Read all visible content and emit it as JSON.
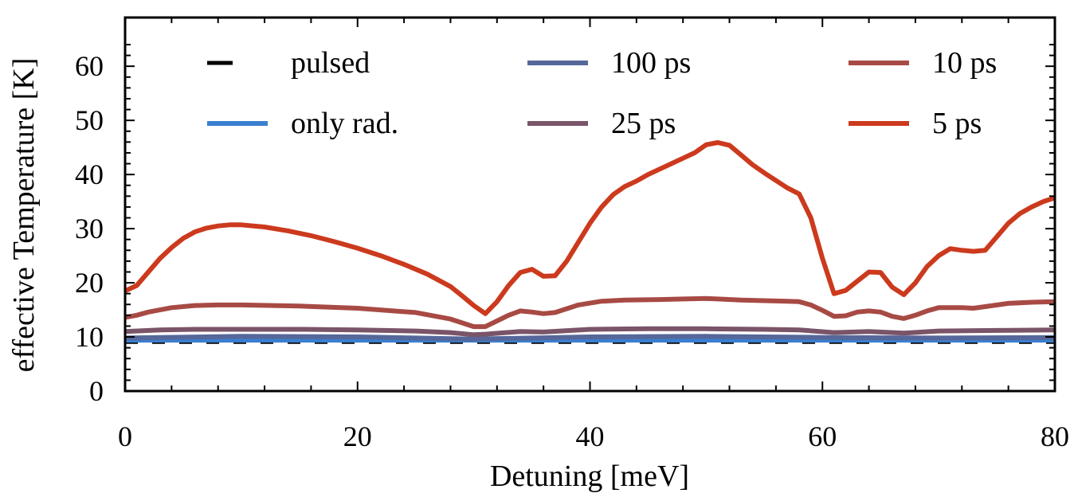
{
  "chart_data": {
    "type": "line",
    "title": "",
    "xlabel": "Detuning [meV]",
    "ylabel": "effective Temperature [K]",
    "xlim": [
      0,
      80
    ],
    "ylim": [
      0,
      69
    ],
    "xticks": [
      0,
      20,
      40,
      60,
      80
    ],
    "xtick_labels": [
      "0",
      "20",
      "40",
      "60",
      "80"
    ],
    "yticks": [
      0,
      10,
      20,
      30,
      40,
      50,
      60
    ],
    "ytick_labels": [
      "0",
      "10",
      "20",
      "30",
      "40",
      "50",
      "60"
    ],
    "grid": false,
    "legend_position": "top, three columns",
    "series": [
      {
        "name": "pulsed",
        "color": "#000000",
        "style": "dashed",
        "x": [
          0,
          80
        ],
        "y": [
          9.0,
          9.0
        ]
      },
      {
        "name": "only rad.",
        "color": "#3a7fcf",
        "style": "solid",
        "x": [
          0,
          80
        ],
        "y": [
          9.4,
          9.4
        ]
      },
      {
        "name": "100 ps",
        "color": "#56679a",
        "style": "solid",
        "x": [
          0,
          10,
          20,
          30,
          40,
          50,
          60,
          70,
          80
        ],
        "y": [
          9.8,
          10.1,
          10.0,
          9.6,
          10.0,
          10.1,
          9.9,
          9.8,
          9.9
        ]
      },
      {
        "name": "25 ps",
        "color": "#7a5468",
        "style": "solid",
        "x": [
          0,
          3,
          6,
          10,
          15,
          20,
          25,
          28,
          30,
          31,
          34,
          36,
          40,
          45,
          50,
          55,
          58,
          61,
          64,
          67,
          70,
          75,
          80
        ],
        "y": [
          11.0,
          11.3,
          11.4,
          11.4,
          11.4,
          11.3,
          11.1,
          10.8,
          10.4,
          10.5,
          11.0,
          10.9,
          11.4,
          11.5,
          11.5,
          11.4,
          11.3,
          10.8,
          11.0,
          10.7,
          11.1,
          11.2,
          11.3
        ]
      },
      {
        "name": "10 ps",
        "color": "#a84a44",
        "style": "solid",
        "x": [
          0,
          1,
          2,
          4,
          6,
          8,
          10,
          15,
          20,
          25,
          28,
          30,
          31,
          33,
          34,
          35,
          36,
          37,
          39,
          41,
          43,
          46,
          48,
          50,
          51,
          53,
          55,
          57,
          58,
          59,
          60,
          61,
          62,
          63,
          64,
          65,
          66,
          67,
          68,
          69,
          70,
          71,
          72,
          73,
          74,
          76,
          78,
          80
        ],
        "y": [
          13.6,
          14.0,
          14.6,
          15.4,
          15.8,
          15.9,
          15.9,
          15.7,
          15.3,
          14.5,
          13.3,
          11.9,
          11.9,
          14.0,
          14.8,
          14.6,
          14.3,
          14.5,
          15.9,
          16.6,
          16.8,
          16.9,
          17.0,
          17.1,
          17.0,
          16.8,
          16.7,
          16.6,
          16.5,
          15.9,
          14.9,
          13.8,
          13.9,
          14.6,
          14.8,
          14.6,
          13.8,
          13.4,
          14.0,
          14.8,
          15.4,
          15.4,
          15.4,
          15.3,
          15.6,
          16.2,
          16.4,
          16.5
        ]
      },
      {
        "name": "5 ps",
        "color": "#cc3a1e",
        "style": "solid",
        "x": [
          0,
          1,
          2,
          3,
          4,
          5,
          6,
          7,
          8,
          9,
          10,
          12,
          14,
          16,
          18,
          20,
          22,
          24,
          26,
          28,
          29,
          30,
          31,
          32,
          33,
          34,
          35,
          36,
          37,
          38,
          39,
          40,
          41,
          42,
          43,
          44,
          45,
          46,
          47,
          48,
          49,
          50,
          51,
          52,
          53,
          54,
          55,
          56,
          57,
          58,
          59,
          60,
          61,
          62,
          63,
          64,
          65,
          66,
          67,
          68,
          69,
          70,
          71,
          72,
          73,
          74,
          75,
          76,
          77,
          78,
          79,
          80
        ],
        "y": [
          18.5,
          19.5,
          22.0,
          24.5,
          26.5,
          28.2,
          29.4,
          30.1,
          30.5,
          30.7,
          30.7,
          30.3,
          29.6,
          28.7,
          27.6,
          26.4,
          25.0,
          23.4,
          21.6,
          19.3,
          17.6,
          15.8,
          14.3,
          16.5,
          19.5,
          21.9,
          22.5,
          21.2,
          21.3,
          24.0,
          27.5,
          31.0,
          34.0,
          36.3,
          37.8,
          38.8,
          40.0,
          41.0,
          42.0,
          43.0,
          44.0,
          45.5,
          45.9,
          45.4,
          43.6,
          41.8,
          40.3,
          38.9,
          37.5,
          36.4,
          32.0,
          24.5,
          18.0,
          18.6,
          20.3,
          22.0,
          21.9,
          19.2,
          17.8,
          20.0,
          23.0,
          25.0,
          26.3,
          26.0,
          25.8,
          26.0,
          28.5,
          31.0,
          32.8,
          34.0,
          35.0,
          35.7
        ]
      }
    ]
  }
}
